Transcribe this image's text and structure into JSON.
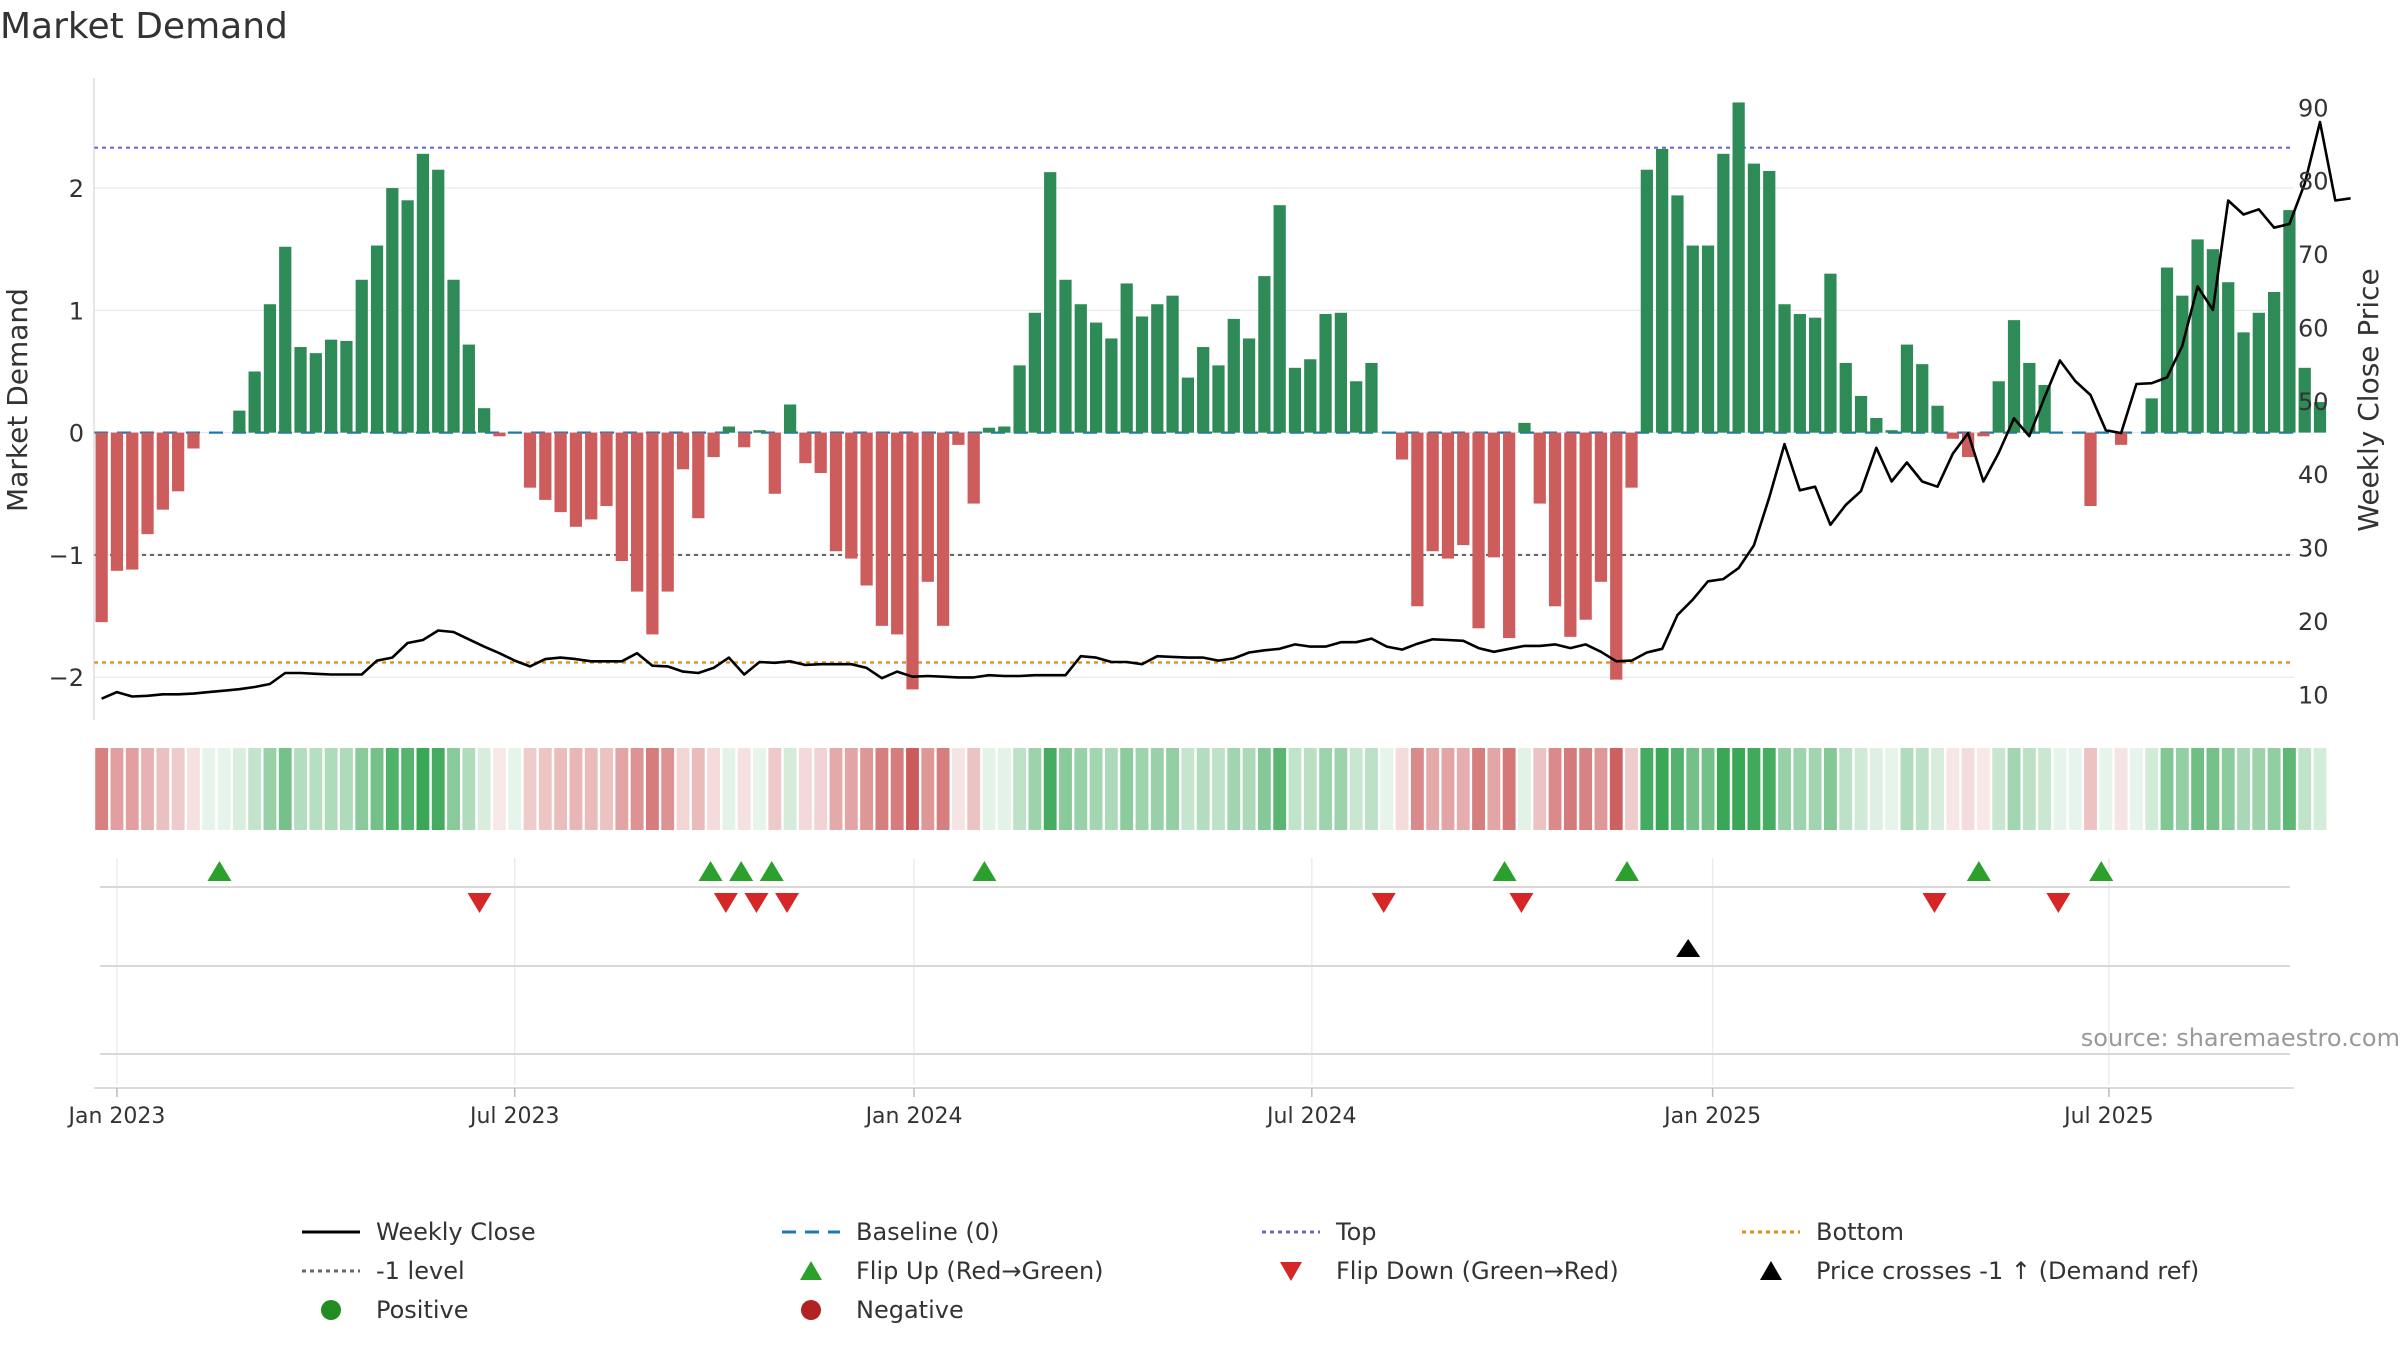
{
  "title": "Market Demand",
  "source": "source: sharemaestro.com",
  "chart_data": {
    "type": "bar",
    "title": "Market Demand",
    "ylabel": "Market Demand",
    "y2label": "Weekly Close Price",
    "ylim": [
      -2.35,
      2.9
    ],
    "y2lim": [
      6.5,
      94
    ],
    "yticks": [
      -2,
      -1,
      0,
      1,
      2
    ],
    "yticklabels": [
      "−2",
      "−1",
      "0",
      "1",
      "2"
    ],
    "y2ticks": [
      10,
      20,
      30,
      40,
      50,
      60,
      70,
      80,
      90
    ],
    "xlim": [
      0,
      143.8
    ],
    "xticks": [
      {
        "week": 1.5,
        "label": "Jan 2023"
      },
      {
        "week": 27.5,
        "label": "Jul 2023"
      },
      {
        "week": 53.6,
        "label": "Jan 2024"
      },
      {
        "week": 79.6,
        "label": "Jul 2024"
      },
      {
        "week": 105.8,
        "label": "Jan 2025"
      },
      {
        "week": 131.7,
        "label": "Jul 2025"
      }
    ],
    "reference_lines": {
      "top": 2.33,
      "bottom": -1.88,
      "minus_one": -1,
      "baseline": 0
    },
    "demand": [
      -1.55,
      -1.13,
      -1.12,
      -0.83,
      -0.63,
      -0.48,
      -0.13,
      0,
      0,
      0.18,
      0.5,
      1.05,
      1.52,
      0.7,
      0.65,
      0.76,
      0.75,
      1.25,
      1.53,
      2,
      1.9,
      2.28,
      2.15,
      1.25,
      0.72,
      0.2,
      -0.03,
      0,
      -0.45,
      -0.55,
      -0.65,
      -0.77,
      -0.71,
      -0.6,
      -1.05,
      -1.3,
      -1.65,
      -1.3,
      -0.3,
      -0.7,
      -0.2,
      0.05,
      -0.12,
      0.02,
      -0.5,
      0.23,
      -0.25,
      -0.33,
      -0.97,
      -1.03,
      -1.25,
      -1.58,
      -1.65,
      -2.1,
      -1.22,
      -1.58,
      -0.1,
      -0.58,
      0.04,
      0.05,
      0.55,
      0.98,
      2.13,
      1.25,
      1.05,
      0.9,
      0.77,
      1.22,
      0.95,
      1.05,
      1.12,
      0.45,
      0.7,
      0.55,
      0.93,
      0.77,
      1.28,
      1.86,
      0.53,
      0.6,
      0.97,
      0.98,
      0.42,
      0.57,
      0,
      -0.22,
      -1.42,
      -0.97,
      -1.03,
      -0.92,
      -1.6,
      -1.02,
      -1.68,
      0.08,
      -0.58,
      -1.42,
      -1.67,
      -1.53,
      -1.22,
      -2.02,
      -0.45,
      2.15,
      2.32,
      1.94,
      1.53,
      1.53,
      2.28,
      2.7,
      2.2,
      2.14,
      1.05,
      0.97,
      0.94,
      1.3,
      0.57,
      0.3,
      0.12,
      0.02,
      0.72,
      0.56,
      0.22,
      -0.05,
      -0.2,
      -0.03,
      0.42,
      0.92,
      0.57,
      0.39,
      0,
      0,
      -0.6,
      0,
      -0.1,
      0,
      0.28,
      1.35,
      1.12,
      1.58,
      1.5,
      1.23,
      0.82,
      0.98,
      1.15,
      1.82,
      0.53,
      0.25
    ],
    "weekly_close": [
      9.4,
      10.3,
      9.7,
      9.8,
      10,
      10,
      10.1,
      10.3,
      10.5,
      10.7,
      11,
      11.4,
      12.9,
      12.9,
      12.8,
      12.7,
      12.7,
      12.7,
      14.6,
      15,
      17,
      17.4,
      18.7,
      18.5,
      17.5,
      16.5,
      15.6,
      14.6,
      13.8,
      14.8,
      15,
      14.8,
      14.5,
      14.5,
      14.5,
      15.6,
      13.9,
      13.8,
      13.1,
      12.9,
      13.6,
      15,
      12.7,
      14.4,
      14.3,
      14.5,
      14,
      14.1,
      14.1,
      14.1,
      13.6,
      12.2,
      13.1,
      12.4,
      12.5,
      12.4,
      12.3,
      12.3,
      12.6,
      12.5,
      12.5,
      12.6,
      12.6,
      12.6,
      15.2,
      15,
      14.4,
      14.4,
      14.1,
      15.2,
      15.1,
      15,
      15,
      14.6,
      14.9,
      15.7,
      16,
      16.2,
      16.8,
      16.5,
      16.5,
      17.1,
      17.1,
      17.6,
      16.5,
      16.1,
      16.9,
      17.5,
      17.4,
      17.3,
      16.3,
      15.8,
      16.2,
      16.6,
      16.6,
      16.8,
      16.3,
      16.8,
      15.8,
      14.5,
      14.6,
      15.7,
      16.2,
      20.8,
      22.9,
      25.4,
      25.7,
      27.2,
      30.3,
      36.8,
      44.1,
      37.8,
      38.3,
      33.1,
      35.8,
      37.7,
      43.6,
      39,
      41.6,
      39,
      38.3,
      42.8,
      45.6,
      39,
      42.9,
      47.6,
      45.2,
      50.5,
      55.5,
      52.7,
      50.8,
      46,
      45.6,
      52.3,
      52.4,
      53.2,
      57.5,
      65.6,
      62.4,
      77.3,
      75.4,
      76.1,
      73.6,
      74.1,
      79.6,
      88,
      77.3,
      77.6
    ],
    "flip_up_weeks": [
      8.2,
      40.3,
      42.3,
      44.3,
      58.2,
      92.2,
      100.2,
      123.2,
      131.2
    ],
    "flip_down_weeks": [
      25.2,
      41.3,
      43.3,
      45.3,
      84.3,
      93.3,
      120.3,
      128.4
    ],
    "price_cross_weeks": [
      104.2
    ],
    "legend": [
      {
        "label": "Weekly Close",
        "symbol": "line-solid",
        "color": "#000000"
      },
      {
        "label": "Baseline (0)",
        "symbol": "line-dash",
        "color": "#1f77b4"
      },
      {
        "label": "Top",
        "symbol": "line-dot",
        "color": "#6a6acd"
      },
      {
        "label": "Bottom",
        "symbol": "line-dot",
        "color": "#d98c1a"
      },
      {
        "label": "-1 level",
        "symbol": "line-dot",
        "color": "#666666"
      },
      {
        "label": "Flip Up (Red→Green)",
        "symbol": "triangle-up",
        "color": "#2ca02c"
      },
      {
        "label": "Flip Down (Green→Red)",
        "symbol": "triangle-down",
        "color": "#d62728"
      },
      {
        "label": "Price crosses -1 ↑ (Demand ref)",
        "symbol": "triangle-up",
        "color": "#000000"
      },
      {
        "label": "Positive",
        "symbol": "circle",
        "color": "#228b22"
      },
      {
        "label": "Negative",
        "symbol": "circle",
        "color": "#b22222"
      }
    ]
  },
  "colors": {
    "positive_bar": "#2e8b57",
    "negative_bar": "#cd5c5c",
    "heat_positive": "#3aa757",
    "heat_negative": "#c85050",
    "grid": "#e6e6e6",
    "axis": "#cccccc"
  }
}
